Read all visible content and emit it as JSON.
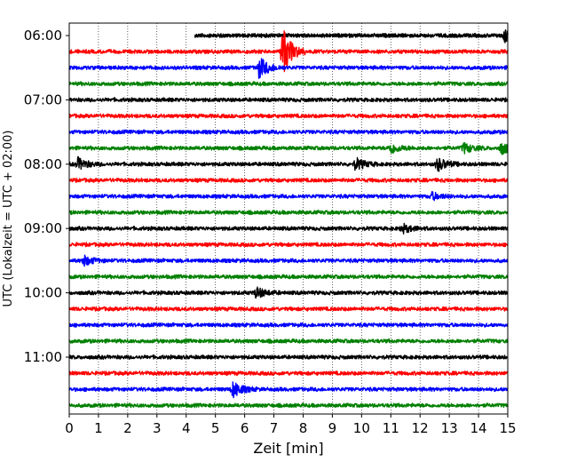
{
  "chart_data": {
    "type": "line",
    "title": "",
    "xlabel": "Zeit  [min]",
    "ylabel": "UTC (Lokalzeit = UTC + 02:00)",
    "xlim": [
      0,
      15
    ],
    "x_ticks": [
      "0",
      "1",
      "2",
      "3",
      "4",
      "5",
      "6",
      "7",
      "8",
      "9",
      "10",
      "11",
      "12",
      "13",
      "14",
      "15"
    ],
    "y_tick_labels": [
      "06:00",
      "07:00",
      "08:00",
      "09:00",
      "10:00",
      "11:00"
    ],
    "grid": "vertical dotted",
    "color_cycle": [
      "#000000",
      "#ff0000",
      "#0000ff",
      "#008000"
    ],
    "traces": [
      {
        "start": "06:00",
        "color": "#000000",
        "x_start": 4.3,
        "events": [
          {
            "x": 14.9,
            "amp": 0.25
          }
        ]
      },
      {
        "start": "06:15",
        "color": "#ff0000",
        "x_start": 0,
        "events": [
          {
            "x": 7.3,
            "amp": 1.0
          }
        ]
      },
      {
        "start": "06:30",
        "color": "#0000ff",
        "x_start": 0,
        "events": [
          {
            "x": 6.5,
            "amp": 0.45
          }
        ]
      },
      {
        "start": "06:45",
        "color": "#008000",
        "x_start": 0,
        "events": []
      },
      {
        "start": "07:00",
        "color": "#000000",
        "x_start": 0,
        "events": []
      },
      {
        "start": "07:15",
        "color": "#ff0000",
        "x_start": 0,
        "events": []
      },
      {
        "start": "07:30",
        "color": "#0000ff",
        "x_start": 0,
        "events": []
      },
      {
        "start": "07:45",
        "color": "#008000",
        "x_start": 0,
        "events": [
          {
            "x": 11.0,
            "amp": 0.22
          },
          {
            "x": 13.5,
            "amp": 0.2
          },
          {
            "x": 14.8,
            "amp": 0.25
          }
        ]
      },
      {
        "start": "08:00",
        "color": "#000000",
        "x_start": 0,
        "events": [
          {
            "x": 0.3,
            "amp": 0.25
          },
          {
            "x": 9.8,
            "amp": 0.25
          },
          {
            "x": 12.6,
            "amp": 0.28
          }
        ]
      },
      {
        "start": "08:15",
        "color": "#ff0000",
        "x_start": 0,
        "events": []
      },
      {
        "start": "08:30",
        "color": "#0000ff",
        "x_start": 0,
        "events": [
          {
            "x": 12.4,
            "amp": 0.15
          }
        ]
      },
      {
        "start": "08:45",
        "color": "#008000",
        "x_start": 0,
        "events": []
      },
      {
        "start": "09:00",
        "color": "#000000",
        "x_start": 0,
        "events": [
          {
            "x": 11.4,
            "amp": 0.18
          }
        ]
      },
      {
        "start": "09:15",
        "color": "#ff0000",
        "x_start": 0,
        "events": []
      },
      {
        "start": "09:30",
        "color": "#0000ff",
        "x_start": 0,
        "events": [
          {
            "x": 0.5,
            "amp": 0.2
          }
        ]
      },
      {
        "start": "09:45",
        "color": "#008000",
        "x_start": 0,
        "events": []
      },
      {
        "start": "10:00",
        "color": "#000000",
        "x_start": 0,
        "events": [
          {
            "x": 6.4,
            "amp": 0.22
          }
        ]
      },
      {
        "start": "10:15",
        "color": "#ff0000",
        "x_start": 0,
        "events": []
      },
      {
        "start": "10:30",
        "color": "#0000ff",
        "x_start": 0,
        "events": []
      },
      {
        "start": "10:45",
        "color": "#008000",
        "x_start": 0,
        "events": []
      },
      {
        "start": "11:00",
        "color": "#000000",
        "x_start": 0,
        "events": []
      },
      {
        "start": "11:15",
        "color": "#ff0000",
        "x_start": 0,
        "events": []
      },
      {
        "start": "11:30",
        "color": "#0000ff",
        "x_start": 0,
        "events": [
          {
            "x": 5.6,
            "amp": 0.35
          }
        ]
      },
      {
        "start": "11:45",
        "color": "#008000",
        "x_start": 0,
        "events": []
      }
    ]
  }
}
